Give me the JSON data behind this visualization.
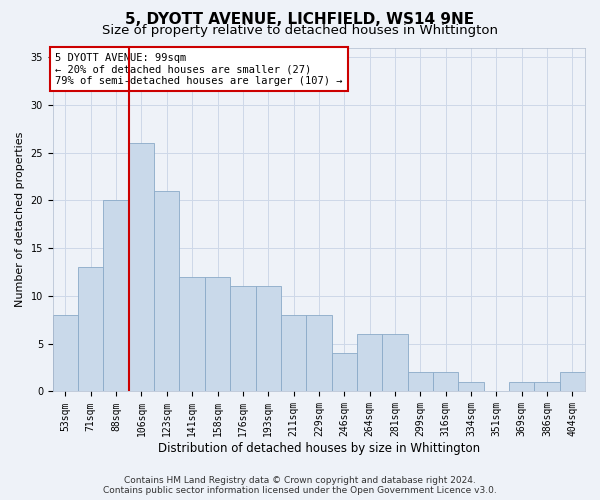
{
  "title": "5, DYOTT AVENUE, LICHFIELD, WS14 9NE",
  "subtitle": "Size of property relative to detached houses in Whittington",
  "xlabel": "Distribution of detached houses by size in Whittington",
  "ylabel": "Number of detached properties",
  "footer1": "Contains HM Land Registry data © Crown copyright and database right 2024.",
  "footer2": "Contains public sector information licensed under the Open Government Licence v3.0.",
  "annotation_title": "5 DYOTT AVENUE: 99sqm",
  "annotation_line1": "← 20% of detached houses are smaller (27)",
  "annotation_line2": "79% of semi-detached houses are larger (107) →",
  "bar_color": "#c9d9ea",
  "bar_edge_color": "#8aaac8",
  "grid_color": "#cdd8e8",
  "vline_color": "#cc0000",
  "annotation_box_color": "#ffffff",
  "annotation_box_edge": "#cc0000",
  "categories": [
    "53sqm",
    "71sqm",
    "88sqm",
    "106sqm",
    "123sqm",
    "141sqm",
    "158sqm",
    "176sqm",
    "193sqm",
    "211sqm",
    "229sqm",
    "246sqm",
    "264sqm",
    "281sqm",
    "299sqm",
    "316sqm",
    "334sqm",
    "351sqm",
    "369sqm",
    "386sqm",
    "404sqm"
  ],
  "values": [
    8,
    13,
    20,
    26,
    21,
    12,
    12,
    11,
    11,
    8,
    8,
    4,
    6,
    6,
    2,
    2,
    1,
    0,
    1,
    1,
    2
  ],
  "vline_x": 2.5,
  "ylim": [
    0,
    36
  ],
  "yticks": [
    0,
    5,
    10,
    15,
    20,
    25,
    30,
    35
  ],
  "background_color": "#eef2f8",
  "title_fontsize": 11,
  "subtitle_fontsize": 9.5,
  "xlabel_fontsize": 8.5,
  "ylabel_fontsize": 8,
  "tick_fontsize": 7,
  "footer_fontsize": 6.5,
  "annotation_fontsize": 7.5
}
